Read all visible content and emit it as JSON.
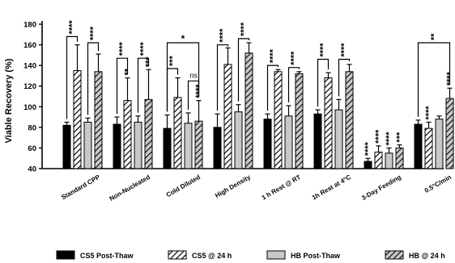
{
  "chart_data": {
    "type": "bar",
    "ylabel": "Viable Recovery (%)",
    "ylim": [
      40,
      180
    ],
    "yticks": [
      40,
      60,
      80,
      100,
      120,
      140,
      160,
      180
    ],
    "categories": [
      "Standard CPP",
      "Non-Nucleated",
      "Cold Diluted",
      "High Density",
      "1 h Rest @ RT",
      "1h Rest at 4°C",
      "3-Day Feeding",
      "0.5°C/min"
    ],
    "series": [
      {
        "name": "CS5 Post-Thaw",
        "pattern": "solid-black",
        "values": [
          82,
          83,
          79,
          80,
          88,
          93,
          47,
          83
        ],
        "errors": [
          3,
          7,
          13,
          13,
          5,
          4,
          3,
          4
        ]
      },
      {
        "name": "CS5 @ 24 h",
        "pattern": "hatch-white",
        "values": [
          135,
          106,
          109,
          141,
          134,
          128,
          56,
          79
        ],
        "errors": [
          25,
          22,
          19,
          16,
          2,
          5,
          6,
          6
        ]
      },
      {
        "name": "HB Post-Thaw",
        "pattern": "solid-grey",
        "values": [
          85,
          85,
          84,
          95,
          91,
          97,
          55,
          88
        ],
        "errors": [
          4,
          6,
          10,
          7,
          10,
          10,
          5,
          3
        ]
      },
      {
        "name": "HB @ 24 h",
        "pattern": "hatch-grey",
        "values": [
          134,
          107,
          86,
          152,
          132,
          134,
          60,
          108
        ],
        "errors": [
          17,
          29,
          20,
          10,
          2,
          7,
          3,
          10
        ]
      }
    ],
    "significance": [
      {
        "group": 0,
        "from": 0,
        "to": 1,
        "label": "****",
        "height": 168
      },
      {
        "group": 0,
        "from": 2,
        "to": 3,
        "label": "****",
        "height": 162
      },
      {
        "group": 1,
        "from": 0,
        "to": 1,
        "label": "****",
        "height": 147
      },
      {
        "group": 1,
        "from": 2,
        "to": 3,
        "label": "****",
        "height": 147
      },
      {
        "group": 2,
        "from": 0,
        "to": 3,
        "label": "*",
        "height": 162
      },
      {
        "group": 2,
        "from": 0,
        "to": 1,
        "label": "***",
        "height": 137
      },
      {
        "group": 2,
        "from": 2,
        "to": 3,
        "label": "ns",
        "height": 125
      },
      {
        "group": 3,
        "from": 0,
        "to": 1,
        "label": "****",
        "height": 160
      },
      {
        "group": 3,
        "from": 2,
        "to": 3,
        "label": "****",
        "height": 166
      },
      {
        "group": 4,
        "from": 0,
        "to": 1,
        "label": "****",
        "height": 140
      },
      {
        "group": 4,
        "from": 2,
        "to": 3,
        "label": "****",
        "height": 138
      },
      {
        "group": 5,
        "from": 0,
        "to": 1,
        "label": "****",
        "height": 146
      },
      {
        "group": 5,
        "from": 2,
        "to": 3,
        "label": "****",
        "height": 146
      },
      {
        "group": 7,
        "from": 0,
        "to": 3,
        "label": "**",
        "height": 162
      }
    ],
    "red_stars": [
      {
        "group": 1,
        "bar": 1,
        "label": "**"
      },
      {
        "group": 1,
        "bar": 3,
        "label": "***"
      },
      {
        "group": 2,
        "bar": 3,
        "label": "****"
      },
      {
        "group": 6,
        "bar": 0,
        "label": "****"
      },
      {
        "group": 6,
        "bar": 1,
        "label": "****"
      },
      {
        "group": 6,
        "bar": 2,
        "label": "****"
      },
      {
        "group": 6,
        "bar": 3,
        "label": "***"
      },
      {
        "group": 7,
        "bar": 1,
        "label": "****"
      },
      {
        "group": 7,
        "bar": 3,
        "label": "****"
      }
    ],
    "colors": {
      "black": "#000000",
      "grey": "#c8c8c8",
      "red": "#ff2a2a",
      "white": "#ffffff"
    },
    "legend_placement": "bottom",
    "grid": false
  }
}
